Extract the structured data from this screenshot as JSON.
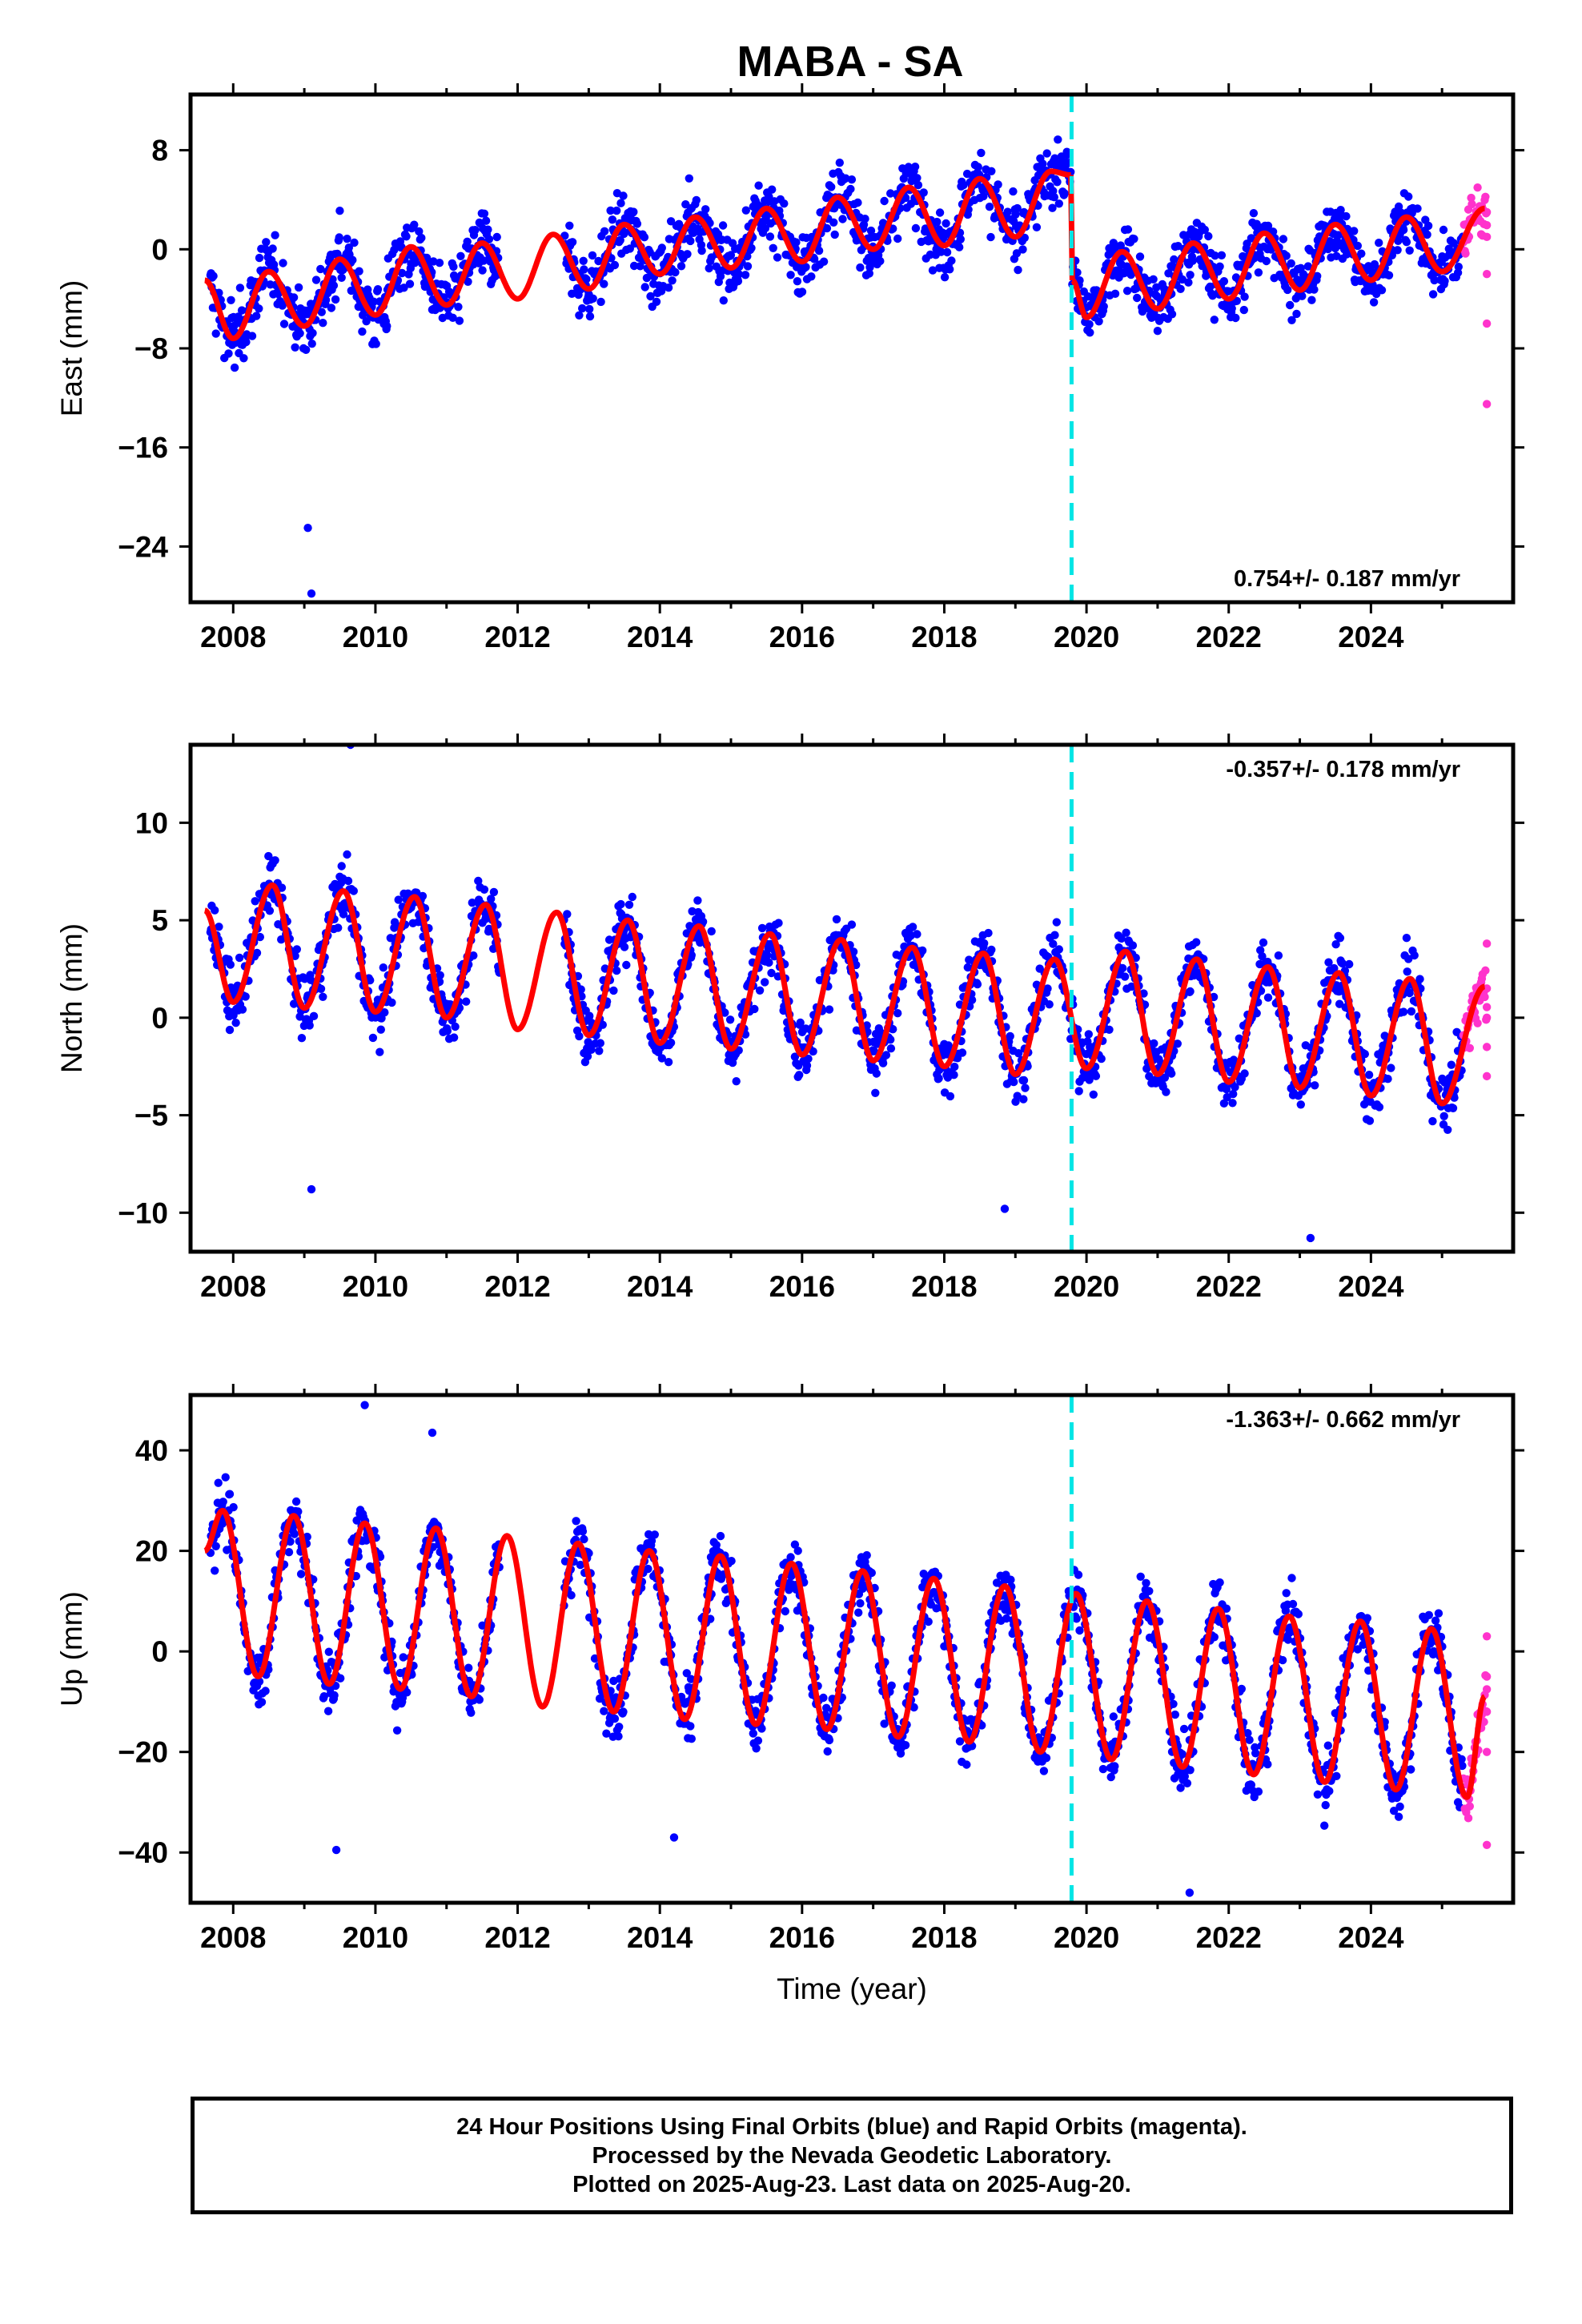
{
  "title": "MABA - SA",
  "footer": {
    "line1": "24 Hour Positions Using Final Orbits (blue) and Rapid Orbits (magenta).",
    "line2": "Processed by the Nevada Geodetic Laboratory.",
    "line3": "Plotted on 2025-Aug-23. Last data on 2025-Aug-20."
  },
  "colors": {
    "final_orbits": "#0000ff",
    "rapid_orbits": "#ff33cc",
    "model_fit": "#ff0000",
    "equipment_change": "#00e5e5"
  },
  "chart_data": [
    {
      "type": "scatter",
      "name": "east",
      "ylabel": "East (mm)",
      "xlabel": "",
      "rate_label": "0.754+/- 0.187 mm/yr",
      "rate_position": "bottom-right",
      "xlim": [
        2007.4,
        2026.0
      ],
      "ylim": [
        -28.5,
        12.5
      ],
      "xticks": [
        "2008",
        "2010",
        "2012",
        "2014",
        "2016",
        "2018",
        "2020",
        "2022",
        "2024"
      ],
      "yticks": [
        "8",
        "0",
        "-8",
        "-16",
        "-24"
      ],
      "ytick_values": [
        8,
        0,
        -8,
        -16,
        -24
      ],
      "grid": false,
      "break_year": 2019.79,
      "data_span": [
        2007.68,
        2025.3
      ],
      "gap": [
        2011.75,
        2012.65
      ],
      "rapid_span": [
        2025.3,
        2025.63
      ],
      "series": [
        {
          "name": "model_fit",
          "segments": [
            {
              "x": [
                2007.6,
                2008.0,
                2008.5,
                2009.0,
                2009.5,
                2010.0,
                2010.5,
                2011.0,
                2011.5,
                2012.0,
                2012.5,
                2013.0,
                2013.5,
                2014.0,
                2014.5,
                2015.0,
                2015.5,
                2016.0,
                2016.5,
                2017.0,
                2017.5,
                2018.0,
                2018.5,
                2019.0,
                2019.5,
                2019.78
              ],
              "y": [
                -2.5,
                -7.2,
                -1.8,
                -6.2,
                -0.8,
                -5.3,
                0.2,
                -4.5,
                0.5,
                -4.0,
                1.2,
                -3.2,
                2.0,
                -2.0,
                2.6,
                -1.5,
                3.3,
                -1.0,
                4.2,
                0.0,
                5.0,
                0.3,
                5.7,
                1.0,
                6.3,
                6.0
              ]
            },
            {
              "x": [
                2019.8,
                2020.0,
                2020.5,
                2021.0,
                2021.5,
                2022.0,
                2022.5,
                2023.0,
                2023.5,
                2024.0,
                2024.5,
                2025.0,
                2025.6
              ],
              "y": [
                -2.5,
                -5.5,
                -0.2,
                -4.8,
                0.5,
                -4.0,
                1.3,
                -3.3,
                2.0,
                -2.5,
                2.6,
                -1.8,
                3.3
              ]
            }
          ]
        },
        {
          "name": "rapid_orbits",
          "x": [
            2025.63,
            2025.63,
            2025.63,
            2025.63,
            2025.63
          ],
          "y": [
            3.0,
            1.0,
            -2.0,
            -6.0,
            -12.5
          ]
        }
      ],
      "outliers": {
        "x": [
          2009.05,
          2009.1
        ],
        "y": [
          -22.5,
          -27.8
        ]
      }
    },
    {
      "type": "scatter",
      "name": "north",
      "ylabel": "North (mm)",
      "xlabel": "",
      "rate_label": "-0.357+/- 0.178 mm/yr",
      "rate_position": "top-right",
      "xlim": [
        2007.4,
        2026.0
      ],
      "ylim": [
        -12.0,
        14.0
      ],
      "xticks": [
        "2008",
        "2010",
        "2012",
        "2014",
        "2016",
        "2018",
        "2020",
        "2022",
        "2024"
      ],
      "yticks": [
        "10",
        "5",
        "0",
        "-5",
        "-10"
      ],
      "ytick_values": [
        10,
        5,
        0,
        -5,
        -10
      ],
      "grid": false,
      "break_year": 2019.79,
      "data_span": [
        2007.68,
        2025.3
      ],
      "gap": [
        2011.75,
        2012.65
      ],
      "rapid_span": [
        2025.3,
        2025.63
      ],
      "series": [
        {
          "name": "model_fit",
          "segments": [
            {
              "x": [
                2007.6,
                2008.0,
                2008.55,
                2009.0,
                2009.55,
                2010.0,
                2010.55,
                2011.0,
                2011.55,
                2012.0,
                2012.55,
                2013.0,
                2013.55,
                2014.0,
                2014.55,
                2015.0,
                2015.55,
                2016.0,
                2016.55,
                2017.0,
                2017.55,
                2018.0,
                2018.55,
                2019.0,
                2019.55,
                2020.0,
                2020.55,
                2021.0,
                2021.55,
                2022.0,
                2022.55,
                2023.0,
                2023.55,
                2024.0,
                2024.55,
                2025.0,
                2025.6
              ],
              "y": [
                5.5,
                0.8,
                6.8,
                0.5,
                6.5,
                0.3,
                6.2,
                0.0,
                5.8,
                -0.6,
                5.4,
                -0.9,
                5.0,
                -1.3,
                4.7,
                -1.6,
                4.3,
                -1.9,
                4.0,
                -2.2,
                3.6,
                -2.5,
                3.3,
                -2.9,
                3.0,
                -2.6,
                3.4,
                -2.9,
                3.0,
                -3.3,
                2.6,
                -3.6,
                2.3,
                -4.0,
                2.0,
                -4.4,
                1.6
              ]
            }
          ]
        },
        {
          "name": "rapid_orbits",
          "x": [
            2025.63,
            2025.63,
            2025.63,
            2025.63,
            2025.63
          ],
          "y": [
            3.8,
            1.5,
            0.0,
            -1.5,
            -3.0
          ]
        }
      ],
      "outliers": {
        "x": [
          2009.65,
          2009.1,
          2018.85,
          2023.15
        ],
        "y": [
          14.0,
          -8.8,
          -9.8,
          -11.3
        ]
      }
    },
    {
      "type": "scatter",
      "name": "up",
      "ylabel": "Up (mm)",
      "xlabel": "Time (year)",
      "rate_label": "-1.363+/- 0.662 mm/yr",
      "rate_position": "top-right",
      "xlim": [
        2007.4,
        2026.0
      ],
      "ylim": [
        -50.0,
        51.0
      ],
      "xticks": [
        "2008",
        "2010",
        "2012",
        "2014",
        "2016",
        "2018",
        "2020",
        "2022",
        "2024"
      ],
      "yticks": [
        "40",
        "20",
        "0",
        "-20",
        "-40"
      ],
      "ytick_values": [
        40,
        20,
        0,
        -20,
        -40
      ],
      "grid": false,
      "break_year": 2019.79,
      "data_span": [
        2007.68,
        2025.3
      ],
      "gap": [
        2011.75,
        2012.65
      ],
      "rapid_span": [
        2025.3,
        2025.63
      ],
      "series": [
        {
          "name": "model_fit",
          "segments": [
            {
              "x": [
                2007.6,
                2007.85,
                2008.35,
                2008.85,
                2009.35,
                2009.85,
                2010.35,
                2010.85,
                2011.35,
                2011.85,
                2012.35,
                2012.85,
                2013.35,
                2013.85,
                2014.35,
                2014.85,
                2015.35,
                2015.85,
                2016.35,
                2016.85,
                2017.35,
                2017.85,
                2018.35,
                2018.85,
                2019.35,
                2019.85,
                2020.35,
                2020.85,
                2021.35,
                2021.85,
                2022.35,
                2022.85,
                2023.35,
                2023.85,
                2024.35,
                2024.85,
                2025.35,
                2025.6
              ],
              "y": [
                20.0,
                28.0,
                -5.0,
                27.0,
                -6.5,
                25.5,
                -7.5,
                24.5,
                -9.0,
                23.0,
                -11.0,
                21.5,
                -12.0,
                20.0,
                -13.5,
                19.0,
                -14.5,
                17.5,
                -15.5,
                16.0,
                -17.0,
                14.5,
                -18.0,
                13.0,
                -20.0,
                11.5,
                -21.5,
                10.0,
                -23.0,
                8.5,
                -24.5,
                7.0,
                -26.0,
                6.0,
                -27.5,
                4.5,
                -29.0,
                -9.0
              ]
            }
          ]
        },
        {
          "name": "rapid_orbits",
          "x": [
            2025.63,
            2025.63,
            2025.63,
            2025.63,
            2025.63
          ],
          "y": [
            3.0,
            -5.0,
            -12.0,
            -20.0,
            -38.5
          ]
        }
      ],
      "outliers": {
        "x": [
          2009.85,
          2010.8,
          2021.45,
          2009.45,
          2014.2
        ],
        "y": [
          49.0,
          43.5,
          -48.0,
          -39.5,
          -37.0
        ]
      }
    }
  ]
}
